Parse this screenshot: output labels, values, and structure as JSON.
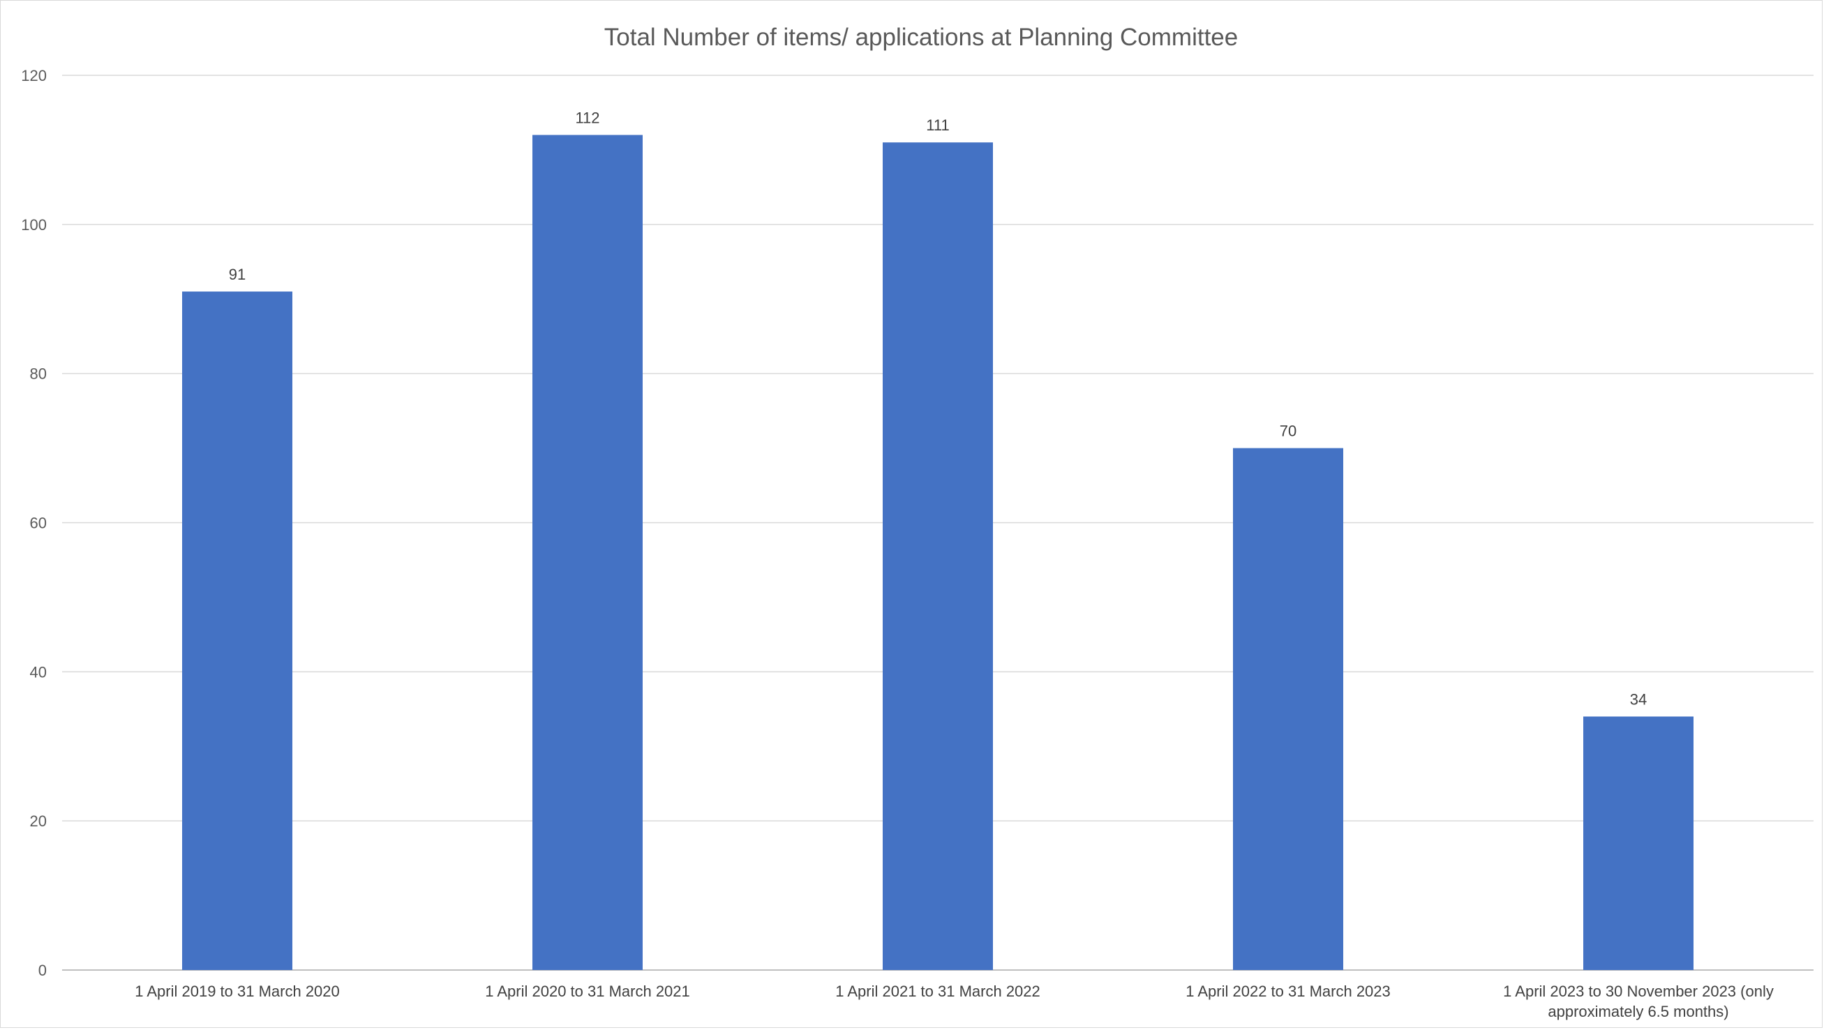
{
  "chart_data": {
    "type": "bar",
    "title": "Total Number of items/ applications at Planning Committee",
    "xlabel": "",
    "ylabel": "",
    "categories": [
      [
        "1 April 2019 to 31 March 2020"
      ],
      [
        "1 April 2020 to 31 March 2021"
      ],
      [
        "1 April 2021 to 31 March 2022"
      ],
      [
        "1 April 2022 to 31 March 2023"
      ],
      [
        "1 April 2023 to 30 November 2023 (only",
        "approximately 6.5 months)"
      ]
    ],
    "values": [
      91,
      112,
      111,
      70,
      34
    ],
    "ylim": [
      0,
      120
    ],
    "yticks": [
      0,
      20,
      40,
      60,
      80,
      100,
      120
    ],
    "grid": true,
    "legend": "none",
    "bar_color": "#4472c4"
  }
}
